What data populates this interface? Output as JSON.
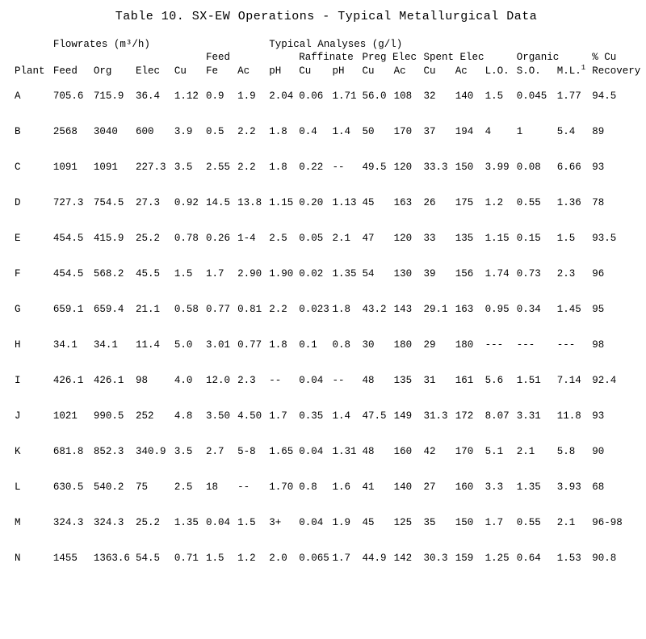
{
  "title": "Table 10.   SX-EW Operations - Typical Metallurgical Data",
  "group_headers": {
    "flowrates": "Flowrates (m³/h)",
    "typical": "Typical Analyses (g/l)"
  },
  "sub_headers": {
    "feed_grp": "Feed",
    "raffinate": "Raffinate",
    "preg_elec": "Preg Elec",
    "spent_elec": "Spent Elec",
    "organic": "Organic",
    "pct_cu": "% Cu"
  },
  "columns": {
    "plant": "Plant",
    "feed": "Feed",
    "org": "Org",
    "elec": "Elec",
    "cu": "Cu",
    "fe": "Fe",
    "ac": "Ac",
    "ph": "pH",
    "r_cu": "Cu",
    "r_ph": "pH",
    "p_cu": "Cu",
    "p_ac": "Ac",
    "s_cu": "Cu",
    "s_ac": "Ac",
    "lo": "L.O.",
    "so": "S.O.",
    "ml": "M.L.",
    "ml_sup": "1",
    "recovery": "Recovery"
  },
  "rows": [
    {
      "plant": "A",
      "feed": "705.6",
      "org": "715.9",
      "elec": "36.4",
      "cu": "1.12",
      "fe": "0.9",
      "ac": "1.9",
      "ph": "2.04",
      "r_cu": "0.06",
      "r_ph": "1.71",
      "p_cu": "56.0",
      "p_ac": "108",
      "s_cu": "32",
      "s_ac": "140",
      "lo": "1.5",
      "so": "0.045",
      "ml": "1.77",
      "rec": "94.5"
    },
    {
      "plant": "B",
      "feed": "2568",
      "org": "3040",
      "elec": "600",
      "cu": "3.9",
      "fe": "0.5",
      "ac": "2.2",
      "ph": "1.8",
      "r_cu": "0.4",
      "r_ph": "1.4",
      "p_cu": "50",
      "p_ac": "170",
      "s_cu": "37",
      "s_ac": "194",
      "lo": "4",
      "so": "1",
      "ml": "5.4",
      "rec": "89"
    },
    {
      "plant": "C",
      "feed": "1091",
      "org": "1091",
      "elec": "227.3",
      "cu": "3.5",
      "fe": "2.55",
      "ac": "2.2",
      "ph": "1.8",
      "r_cu": "0.22",
      "r_ph": "--",
      "p_cu": "49.5",
      "p_ac": "120",
      "s_cu": "33.3",
      "s_ac": "150",
      "lo": "3.99",
      "so": "0.08",
      "ml": "6.66",
      "rec": "93"
    },
    {
      "plant": "D",
      "feed": "727.3",
      "org": "754.5",
      "elec": "27.3",
      "cu": "0.92",
      "fe": "14.5",
      "ac": "13.8",
      "ph": "1.15",
      "r_cu": "0.20",
      "r_ph": "1.13",
      "p_cu": "45",
      "p_ac": "163",
      "s_cu": "26",
      "s_ac": "175",
      "lo": "1.2",
      "so": "0.55",
      "ml": "1.36",
      "rec": "78"
    },
    {
      "plant": "E",
      "feed": "454.5",
      "org": "415.9",
      "elec": "25.2",
      "cu": "0.78",
      "fe": "0.26",
      "ac": "1-4",
      "ph": "2.5",
      "r_cu": "0.05",
      "r_ph": "2.1",
      "p_cu": "47",
      "p_ac": "120",
      "s_cu": "33",
      "s_ac": "135",
      "lo": "1.15",
      "so": "0.15",
      "ml": "1.5",
      "rec": "93.5"
    },
    {
      "plant": "F",
      "feed": "454.5",
      "org": "568.2",
      "elec": "45.5",
      "cu": "1.5",
      "fe": "1.7",
      "ac": "2.90",
      "ph": "1.90",
      "r_cu": "0.02",
      "r_ph": "1.35",
      "p_cu": "54",
      "p_ac": "130",
      "s_cu": "39",
      "s_ac": "156",
      "lo": "1.74",
      "so": "0.73",
      "ml": "2.3",
      "rec": "96"
    },
    {
      "plant": "G",
      "feed": "659.1",
      "org": "659.4",
      "elec": "21.1",
      "cu": "0.58",
      "fe": "0.77",
      "ac": "0.81",
      "ph": "2.2",
      "r_cu": "0.023",
      "r_ph": "1.8",
      "p_cu": "43.2",
      "p_ac": "143",
      "s_cu": "29.1",
      "s_ac": "163",
      "lo": "0.95",
      "so": "0.34",
      "ml": "1.45",
      "rec": "95"
    },
    {
      "plant": "H",
      "feed": "34.1",
      "org": "34.1",
      "elec": "11.4",
      "cu": "5.0",
      "fe": "3.01",
      "ac": "0.77",
      "ph": "1.8",
      "r_cu": "0.1",
      "r_ph": "0.8",
      "p_cu": "30",
      "p_ac": "180",
      "s_cu": "29",
      "s_ac": "180",
      "lo": "---",
      "so": "---",
      "ml": "---",
      "rec": "98"
    },
    {
      "plant": "I",
      "feed": "426.1",
      "org": "426.1",
      "elec": "98",
      "cu": "4.0",
      "fe": "12.0",
      "ac": "2.3",
      "ph": "--",
      "r_cu": "0.04",
      "r_ph": "--",
      "p_cu": "48",
      "p_ac": "135",
      "s_cu": "31",
      "s_ac": "161",
      "lo": "5.6",
      "so": "1.51",
      "ml": "7.14",
      "rec": "92.4"
    },
    {
      "plant": "J",
      "feed": "1021",
      "org": "990.5",
      "elec": "252",
      "cu": "4.8",
      "fe": "3.50",
      "ac": "4.50",
      "ph": "1.7",
      "r_cu": "0.35",
      "r_ph": "1.4",
      "p_cu": "47.5",
      "p_ac": "149",
      "s_cu": "31.3",
      "s_ac": "172",
      "lo": "8.07",
      "so": "3.31",
      "ml": "11.8",
      "rec": "93"
    },
    {
      "plant": "K",
      "feed": "681.8",
      "org": "852.3",
      "elec": "340.9",
      "cu": "3.5",
      "fe": "2.7",
      "ac": "5-8",
      "ph": "1.65",
      "r_cu": "0.04",
      "r_ph": "1.31",
      "p_cu": "48",
      "p_ac": "160",
      "s_cu": "42",
      "s_ac": "170",
      "lo": "5.1",
      "so": "2.1",
      "ml": "5.8",
      "rec": "90"
    },
    {
      "plant": "L",
      "feed": "630.5",
      "org": "540.2",
      "elec": "75",
      "cu": "2.5",
      "fe": "18",
      "ac": "--",
      "ph": "1.70",
      "r_cu": "0.8",
      "r_ph": "1.6",
      "p_cu": "41",
      "p_ac": "140",
      "s_cu": "27",
      "s_ac": "160",
      "lo": "3.3",
      "so": "1.35",
      "ml": "3.93",
      "rec": "68"
    },
    {
      "plant": "M",
      "feed": "324.3",
      "org": "324.3",
      "elec": "25.2",
      "cu": "1.35",
      "fe": "0.04",
      "ac": "1.5",
      "ph": "3+",
      "r_cu": "0.04",
      "r_ph": "1.9",
      "p_cu": "45",
      "p_ac": "125",
      "s_cu": "35",
      "s_ac": "150",
      "lo": "1.7",
      "so": "0.55",
      "ml": "2.1",
      "rec": "96-98"
    },
    {
      "plant": "N",
      "feed": "1455",
      "org": "1363.6",
      "elec": "54.5",
      "cu": "0.71",
      "fe": "1.5",
      "ac": "1.2",
      "ph": "2.0",
      "r_cu": "0.065",
      "r_ph": "1.7",
      "p_cu": "44.9",
      "p_ac": "142",
      "s_cu": "30.3",
      "s_ac": "159",
      "lo": "1.25",
      "so": "0.64",
      "ml": "1.53",
      "rec": "90.8"
    }
  ]
}
